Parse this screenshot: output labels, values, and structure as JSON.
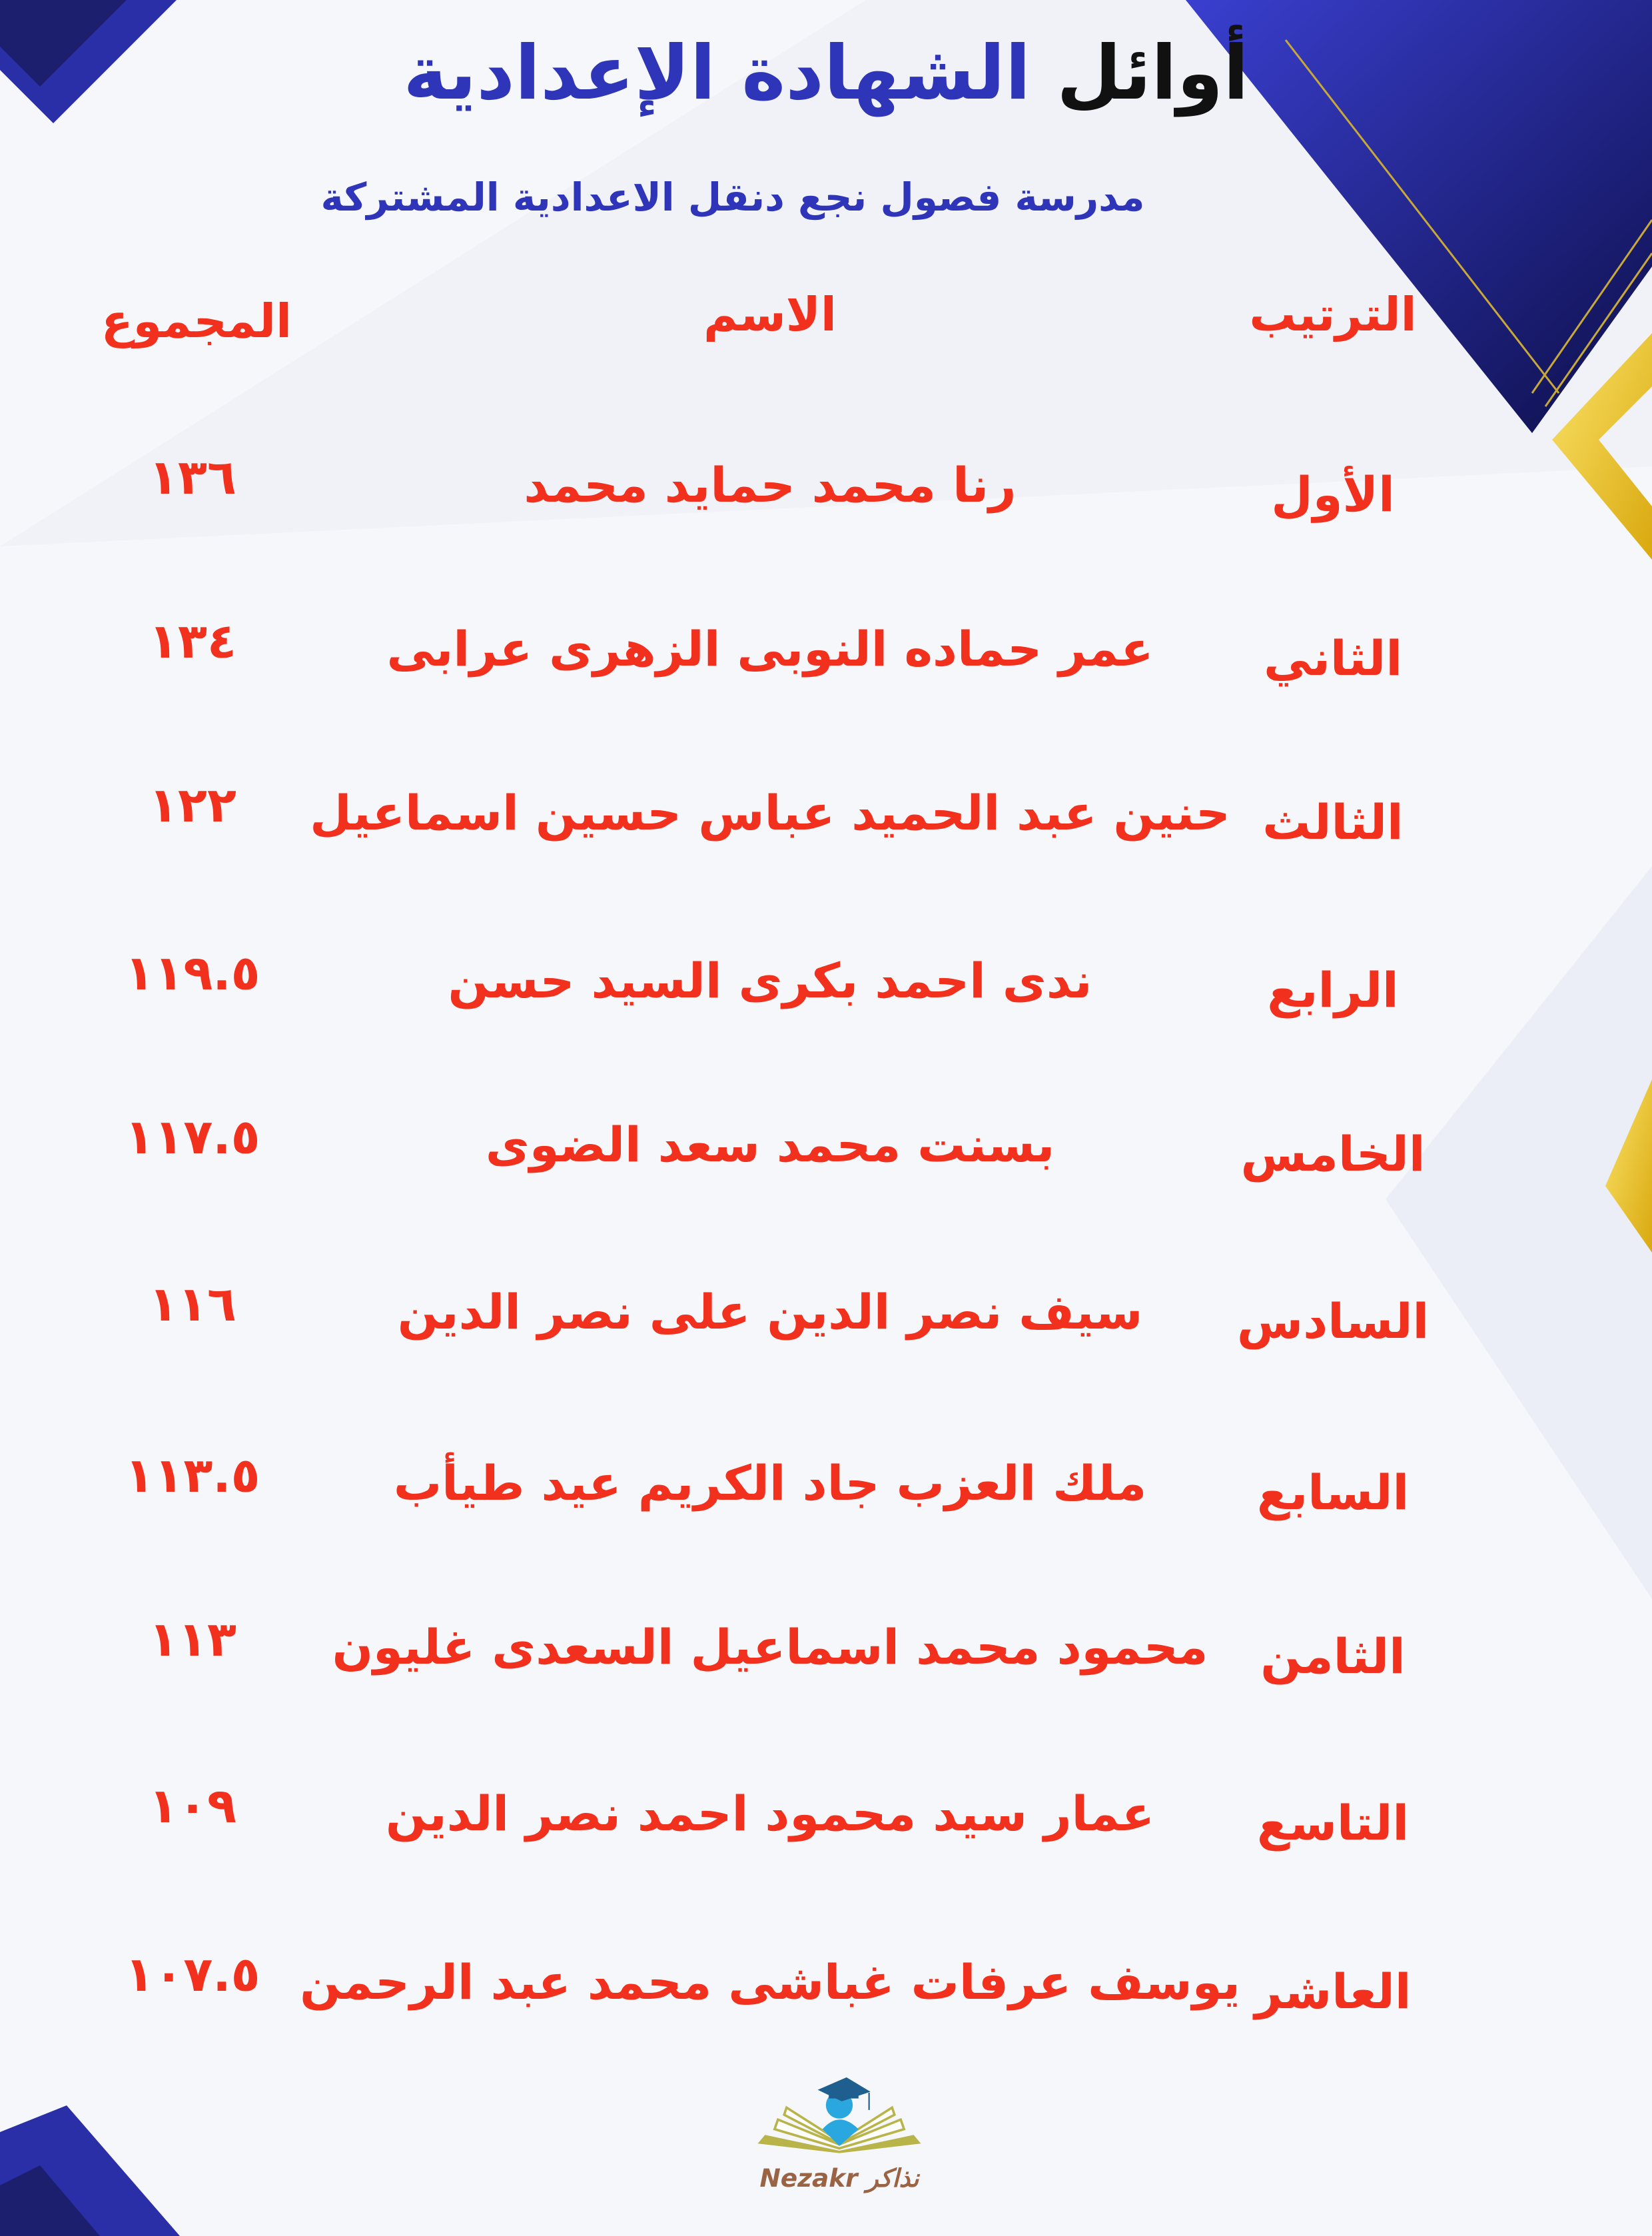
{
  "header": {
    "title_part1": "أوائل",
    "title_part2": "الشهادة الإعدادية",
    "subtitle": "مدرسة فصول نجع دنقل الاعدادية المشتركة"
  },
  "table": {
    "columns": {
      "rank": "الترتيب",
      "name": "الاسم",
      "total": "المجموع"
    },
    "rows": [
      {
        "rank": "الأول",
        "name": "رنا محمد حمايد محمد",
        "total": "١٣٦"
      },
      {
        "rank": "الثاني",
        "name": "عمر حماده النوبى الزهرى عرابى",
        "total": "١٣٤"
      },
      {
        "rank": "الثالث",
        "name": "حنين عبد الحميد عباس حسين اسماعيل",
        "total": "١٢٢"
      },
      {
        "rank": "الرابع",
        "name": "ندى احمد بكرى السيد حسن",
        "total": "١١٩.٥"
      },
      {
        "rank": "الخامس",
        "name": "بسنت محمد سعد الضوى",
        "total": "١١٧.٥"
      },
      {
        "rank": "السادس",
        "name": "سيف نصر الدين على نصر الدين",
        "total": "١١٦"
      },
      {
        "rank": "السابع",
        "name": "ملك العزب جاد الكريم عيد طيأب",
        "total": "١١٣.٥"
      },
      {
        "rank": "الثامن",
        "name": "محمود محمد اسماعيل السعدى غليون",
        "total": "١١٣"
      },
      {
        "rank": "التاسع",
        "name": "عمار سيد محمود احمد نصر الدين",
        "total": "١٠٩"
      },
      {
        "rank": "العاشر",
        "name": "يوسف عرفات غباشى محمد عبد الرحمن",
        "total": "١٠٧.٥"
      }
    ]
  },
  "logo": {
    "text_en": "Nezakr",
    "text_ar": "نذاكر"
  },
  "colors": {
    "blue": "#2f35b8",
    "red": "#f2301e",
    "gold": "#e8c21a",
    "logo_brown": "#9a6444"
  }
}
